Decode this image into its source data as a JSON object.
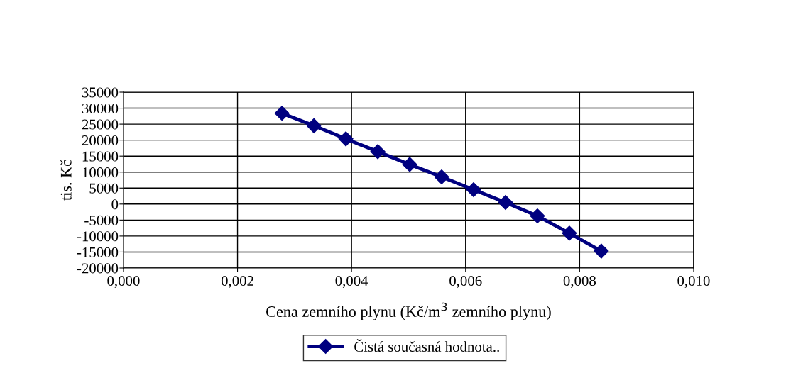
{
  "chart_data": {
    "type": "line",
    "xlabel": "Cena zemního plynu (Kč/m$^{3}$ zemního plynu)",
    "ylabel": "tis. Kč",
    "x": [
      0.00278,
      0.00334,
      0.0039,
      0.00446,
      0.00502,
      0.00558,
      0.00614,
      0.0067,
      0.00726,
      0.00782,
      0.00838
    ],
    "series": [
      {
        "name": "Čistá současná hodnota..",
        "color": "#000080",
        "values": [
          28400,
          24500,
          20400,
          16400,
          12400,
          8500,
          4500,
          500,
          -3700,
          -9100,
          -14700
        ]
      }
    ],
    "xlim": [
      0,
      0.01
    ],
    "xticks": [
      {
        "value": 0,
        "label": "0,000"
      },
      {
        "value": 0.002,
        "label": "0,002"
      },
      {
        "value": 0.004,
        "label": "0,004"
      },
      {
        "value": 0.006,
        "label": "0,006"
      },
      {
        "value": 0.008,
        "label": "0,008"
      },
      {
        "value": 0.01,
        "label": "0,010"
      }
    ],
    "ylim": [
      -20000,
      35000
    ],
    "yticks": [
      -20000,
      -15000,
      -10000,
      -5000,
      0,
      5000,
      10000,
      15000,
      20000,
      25000,
      30000,
      35000
    ],
    "grid": true,
    "legend": "bottom",
    "marker": "diamond",
    "line_style": "solid"
  }
}
